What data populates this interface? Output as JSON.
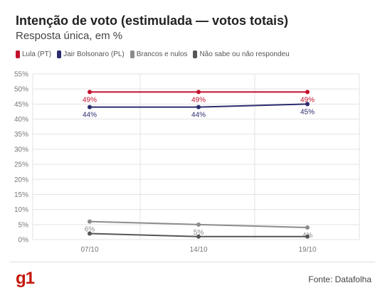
{
  "title": "Intenção de voto (estimulada — votos totais)",
  "subtitle": "Resposta única, em %",
  "source": "Fonte: Datafolha",
  "logo": "g1",
  "chart_data": {
    "type": "line",
    "x": [
      "07/10",
      "14/10",
      "19/10"
    ],
    "yticks": [
      "55%",
      "50%",
      "45%",
      "40%",
      "35%",
      "30%",
      "25%",
      "20%",
      "15%",
      "10%",
      "5%",
      "0%"
    ],
    "ylim": [
      0,
      55
    ],
    "grid": true,
    "legend": "top-left",
    "series": [
      {
        "name": "Lula (PT)",
        "color": "#c4102e",
        "values": [
          49,
          49,
          49
        ],
        "labels": [
          "49%",
          "49%",
          "49%"
        ],
        "label_pos": "below"
      },
      {
        "name": "Jair Bolsonaro (PL)",
        "color": "#2b2c6e",
        "values": [
          44,
          44,
          45
        ],
        "labels": [
          "44%",
          "44%",
          "45%"
        ],
        "label_pos": "below"
      },
      {
        "name": "Brancos e nulos",
        "color": "#8c8c8c",
        "values": [
          6,
          5,
          4
        ],
        "labels": [
          "6%",
          "5%",
          "4%"
        ],
        "label_pos": "below"
      },
      {
        "name": "Não sabe ou não respondeu",
        "color": "#555555",
        "values": [
          2,
          1,
          1
        ],
        "labels": [],
        "label_pos": "none"
      }
    ]
  }
}
